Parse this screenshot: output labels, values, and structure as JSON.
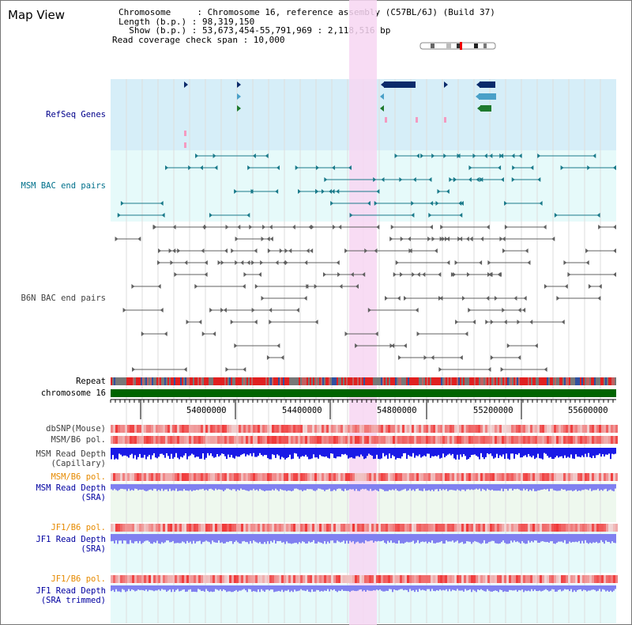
{
  "view_title": "Map View",
  "header": {
    "chromosome_line": "Chromosome     : Chromosome 16, reference assembly (C57BL/6J) (Build 37)",
    "length_line": "Length (b.p.) : 98,319,150",
    "show_line": "  Show (b.p.) : 53,673,454-55,791,969 : 2,118,516 bp",
    "coverage_line": "Read coverage check span : 10,000"
  },
  "tracks": [
    {
      "id": "refseq",
      "label": "RefSeq Genes",
      "color": "#00008b"
    },
    {
      "id": "msm_bac",
      "label": "MSM BAC end pairs",
      "color": "#00708b"
    },
    {
      "id": "b6n_bac",
      "label": "B6N BAC end pairs",
      "color": "#404040"
    },
    {
      "id": "repeat",
      "label": "Repeat",
      "color": "#000000"
    },
    {
      "id": "chrom",
      "label": "chromosome 16",
      "color": "#000000"
    },
    {
      "id": "dbsnp",
      "label": "dbSNP(Mouse)",
      "color": "#404040"
    },
    {
      "id": "msm_b6_pol",
      "label": "MSM/B6 pol.",
      "color": "#404040"
    },
    {
      "id": "msm_read_cap",
      "label": "MSM Read Depth",
      "label2": "(Capillary)",
      "color": "#404040"
    },
    {
      "id": "msm_b6_pol2",
      "label": "MSM/B6 pol.",
      "color": "#e68a00"
    },
    {
      "id": "msm_read_sra",
      "label": "MSM Read Depth",
      "label2": "(SRA)",
      "color": "#0000a0"
    },
    {
      "id": "jf1_b6_pol",
      "label": "JF1/B6 pol.",
      "color": "#e68a00"
    },
    {
      "id": "jf1_read_sra",
      "label": "JF1 Read Depth",
      "label2": "(SRA)",
      "color": "#0000a0"
    },
    {
      "id": "jf1_b6_pol2",
      "label": "JF1/B6 pol.",
      "color": "#e68a00"
    },
    {
      "id": "jf1_read_trim",
      "label": "JF1 Read Depth",
      "label2": "(SRA trimmed)",
      "color": "#0000a0"
    }
  ],
  "ruler": {
    "ticks": [
      "54000000",
      "54400000",
      "54800000",
      "55200000",
      "55600000"
    ]
  },
  "colors": {
    "refseq_bg": "#d6eef8",
    "bac_bg": "#e6fafa",
    "highlight": "#f7d6f2",
    "chrom_bar": "#006400",
    "snp_red": "#e83030",
    "depth_blue": "#1a1ae6",
    "sra_blue": "#8080f0",
    "sra_bg": "#eef8ee"
  }
}
